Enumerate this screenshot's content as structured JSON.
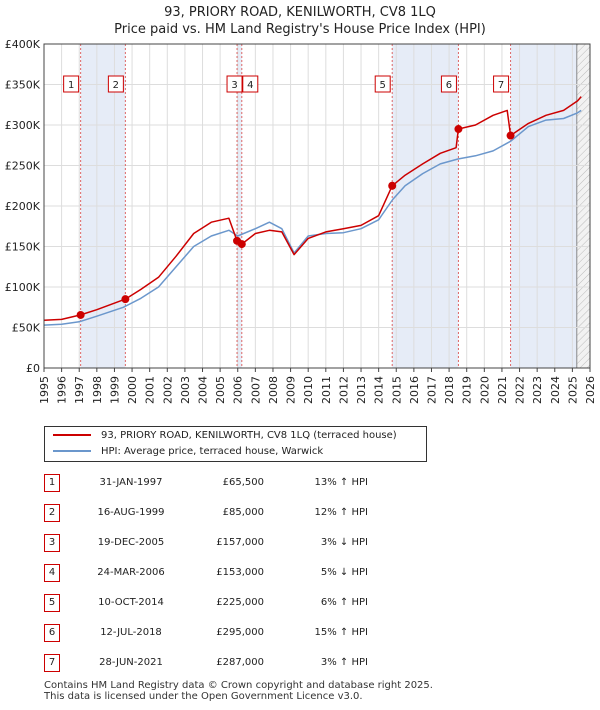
{
  "title": "93, PRIORY ROAD, KENILWORTH, CV8 1LQ",
  "subtitle": "Price paid vs. HM Land Registry's House Price Index (HPI)",
  "chart_data": {
    "type": "line",
    "ylim": [
      0,
      400000
    ],
    "xlim": [
      1995.0,
      2026.0
    ],
    "yticks": [
      0,
      50000,
      100000,
      150000,
      200000,
      250000,
      300000,
      350000,
      400000
    ],
    "ytick_labels": [
      "£0",
      "£50K",
      "£100K",
      "£150K",
      "£200K",
      "£250K",
      "£300K",
      "£350K",
      "£400K"
    ],
    "xticks": [
      "1995",
      "1996",
      "1997",
      "1998",
      "1999",
      "2000",
      "2001",
      "2002",
      "2003",
      "2004",
      "2005",
      "2006",
      "2007",
      "2008",
      "2009",
      "2010",
      "2011",
      "2012",
      "2013",
      "2014",
      "2015",
      "2016",
      "2017",
      "2018",
      "2019",
      "2020",
      "2021",
      "2022",
      "2023",
      "2024",
      "2025",
      "2026"
    ],
    "shaded_spans": [
      [
        1997.08,
        1999.62
      ],
      [
        2005.96,
        2006.23
      ],
      [
        2014.77,
        2018.53
      ],
      [
        2021.49,
        2025.25
      ]
    ],
    "future_from": 2025.25,
    "series": [
      {
        "name": "93, PRIORY ROAD, KENILWORTH, CV8 1LQ (terraced house)",
        "color": "#cc0000",
        "x": [
          1995.0,
          1996.0,
          1997.08,
          1998.0,
          1999.62,
          2000.5,
          2001.5,
          2002.5,
          2003.5,
          2004.5,
          2005.5,
          2005.96,
          2006.23,
          2007.0,
          2007.8,
          2008.5,
          2009.2,
          2010.0,
          2011.0,
          2012.0,
          2013.0,
          2014.0,
          2014.77,
          2015.5,
          2016.5,
          2017.5,
          2018.4,
          2018.53,
          2019.5,
          2020.5,
          2021.3,
          2021.49,
          2022.5,
          2023.5,
          2024.5,
          2025.3,
          2025.5
        ],
        "values": [
          59000,
          60000,
          65500,
          72000,
          85000,
          97000,
          112000,
          138000,
          166000,
          180000,
          185000,
          157000,
          153000,
          166000,
          170000,
          168000,
          140000,
          160000,
          168000,
          172000,
          176000,
          188000,
          225000,
          238000,
          252000,
          265000,
          272000,
          295000,
          300000,
          312000,
          318000,
          287000,
          302000,
          312000,
          318000,
          330000,
          335000
        ]
      },
      {
        "name": "HPI: Average price, terraced house, Warwick",
        "color": "#6b97cc",
        "x": [
          1995.0,
          1996.0,
          1997.0,
          1998.0,
          1999.5,
          2000.5,
          2001.5,
          2002.5,
          2003.5,
          2004.5,
          2005.5,
          2006.0,
          2007.0,
          2007.8,
          2008.5,
          2009.2,
          2010.0,
          2011.0,
          2012.0,
          2013.0,
          2014.0,
          2014.8,
          2015.5,
          2016.5,
          2017.5,
          2018.5,
          2019.5,
          2020.5,
          2021.5,
          2022.5,
          2023.5,
          2024.5,
          2025.3,
          2025.5
        ],
        "values": [
          53000,
          54000,
          57000,
          64000,
          75000,
          86000,
          100000,
          125000,
          150000,
          163000,
          170000,
          163000,
          172000,
          180000,
          172000,
          142000,
          163000,
          166000,
          167000,
          172000,
          183000,
          208000,
          225000,
          240000,
          252000,
          258000,
          262000,
          268000,
          280000,
          298000,
          306000,
          308000,
          315000,
          318000
        ]
      }
    ],
    "markers": [
      {
        "label": "1",
        "x": 1997.08,
        "y": 65500
      },
      {
        "label": "2",
        "x": 1999.62,
        "y": 85000
      },
      {
        "label": "3",
        "x": 2005.96,
        "y": 157000
      },
      {
        "label": "4",
        "x": 2006.23,
        "y": 153000
      },
      {
        "label": "5",
        "x": 2014.77,
        "y": 225000
      },
      {
        "label": "6",
        "x": 2018.53,
        "y": 295000
      },
      {
        "label": "7",
        "x": 2021.49,
        "y": 287000
      }
    ]
  },
  "legend": {
    "property": "93, PRIORY ROAD, KENILWORTH, CV8 1LQ (terraced house)",
    "hpi": "HPI: Average price, terraced house, Warwick"
  },
  "transactions": [
    {
      "num": "1",
      "date": "31-JAN-1997",
      "price": "£65,500",
      "hpi": "13% ↑ HPI"
    },
    {
      "num": "2",
      "date": "16-AUG-1999",
      "price": "£85,000",
      "hpi": "12% ↑ HPI"
    },
    {
      "num": "3",
      "date": "19-DEC-2005",
      "price": "£157,000",
      "hpi": "3% ↓ HPI"
    },
    {
      "num": "4",
      "date": "24-MAR-2006",
      "price": "£153,000",
      "hpi": "5% ↓ HPI"
    },
    {
      "num": "5",
      "date": "10-OCT-2014",
      "price": "£225,000",
      "hpi": "6% ↑ HPI"
    },
    {
      "num": "6",
      "date": "12-JUL-2018",
      "price": "£295,000",
      "hpi": "15% ↑ HPI"
    },
    {
      "num": "7",
      "date": "28-JUN-2021",
      "price": "£287,000",
      "hpi": "3% ↑ HPI"
    }
  ],
  "footer": {
    "line1": "Contains HM Land Registry data © Crown copyright and database right 2025.",
    "line2": "This data is licensed under the Open Government Licence v3.0."
  }
}
